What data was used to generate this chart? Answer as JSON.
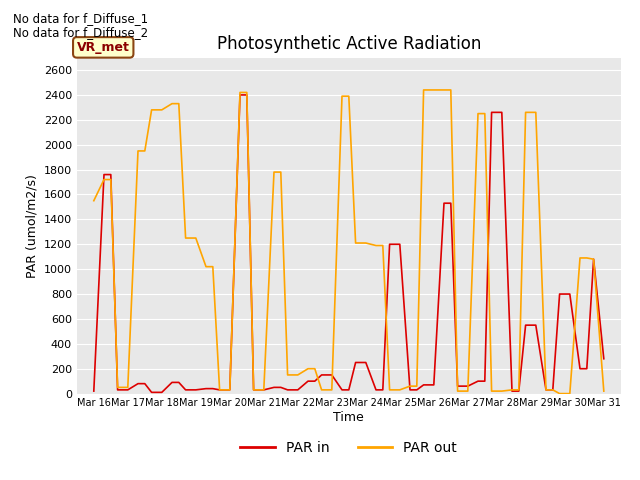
{
  "title": "Photosynthetic Active Radiation",
  "xlabel": "Time",
  "ylabel": "PAR (umol/m2/s)",
  "annotations": [
    "No data for f_Diffuse_1",
    "No data for f_Diffuse_2"
  ],
  "box_label": "VR_met",
  "legend_entries": [
    "PAR in",
    "PAR out"
  ],
  "color_par_in": "#dd0000",
  "color_par_out": "#FFA500",
  "bg_color": "#e8e8e8",
  "ylim": [
    0,
    2700
  ],
  "yticks": [
    0,
    200,
    400,
    600,
    800,
    1000,
    1200,
    1400,
    1600,
    1800,
    2000,
    2200,
    2400,
    2600
  ],
  "x_labels": [
    "Mar 16",
    "Mar 17",
    "Mar 18",
    "Mar 19",
    "Mar 20",
    "Mar 21",
    "Mar 22",
    "Mar 23",
    "Mar 24",
    "Mar 25",
    "Mar 26",
    "Mar 27",
    "Mar 28",
    "Mar 29",
    "Mar 30",
    "Mar 31"
  ],
  "par_in_x": [
    0,
    0.3,
    0.5,
    0.7,
    1.0,
    1.3,
    1.5,
    1.7,
    2.0,
    2.3,
    2.5,
    2.7,
    3.0,
    3.3,
    3.5,
    3.7,
    4.0,
    4.3,
    4.5,
    4.7,
    5.0,
    5.3,
    5.5,
    5.7,
    6.0,
    6.3,
    6.5,
    6.7,
    7.0,
    7.3,
    7.5,
    7.7,
    8.0,
    8.3,
    8.5,
    8.7,
    9.0,
    9.3,
    9.5,
    9.7,
    10.0,
    10.3,
    10.5,
    10.7,
    11.0,
    11.3,
    11.5,
    11.7,
    12.0,
    12.3,
    12.5,
    12.7,
    13.0,
    13.3,
    13.5,
    13.7,
    14.0,
    14.3,
    14.5,
    14.7,
    15.0
  ],
  "par_in_y": [
    20,
    1760,
    1760,
    30,
    30,
    80,
    80,
    10,
    10,
    90,
    90,
    30,
    30,
    40,
    40,
    30,
    30,
    2400,
    2400,
    30,
    30,
    50,
    50,
    30,
    30,
    100,
    100,
    150,
    150,
    30,
    30,
    250,
    250,
    30,
    30,
    1200,
    1200,
    30,
    30,
    70,
    70,
    1530,
    1530,
    60,
    60,
    100,
    100,
    2260,
    2260,
    20,
    20,
    550,
    550,
    30,
    30,
    800,
    800,
    200,
    200,
    1080,
    280
  ],
  "par_out_x": [
    0,
    0.3,
    0.5,
    0.7,
    1.0,
    1.3,
    1.5,
    1.7,
    2.0,
    2.3,
    2.5,
    2.7,
    3.0,
    3.3,
    3.5,
    3.7,
    4.0,
    4.3,
    4.5,
    4.7,
    5.0,
    5.3,
    5.5,
    5.7,
    6.0,
    6.3,
    6.5,
    6.7,
    7.0,
    7.3,
    7.5,
    7.7,
    8.0,
    8.3,
    8.5,
    8.7,
    9.0,
    9.3,
    9.5,
    9.7,
    10.0,
    10.3,
    10.5,
    10.7,
    11.0,
    11.3,
    11.5,
    11.7,
    12.0,
    12.3,
    12.5,
    12.7,
    13.0,
    13.3,
    13.5,
    13.7,
    14.0,
    14.3,
    14.5,
    14.7,
    15.0
  ],
  "par_out_y": [
    1550,
    1720,
    1720,
    50,
    50,
    1950,
    1950,
    2280,
    2280,
    2330,
    2330,
    1250,
    1250,
    1020,
    1020,
    30,
    30,
    2420,
    2420,
    30,
    30,
    1780,
    1780,
    150,
    150,
    200,
    200,
    30,
    30,
    2390,
    2390,
    1210,
    1210,
    1190,
    1190,
    30,
    30,
    60,
    60,
    2440,
    2440,
    2440,
    2440,
    20,
    20,
    2250,
    2250,
    20,
    20,
    30,
    30,
    2260,
    2260,
    30,
    30,
    0,
    0,
    1090,
    1090,
    1080,
    20
  ]
}
